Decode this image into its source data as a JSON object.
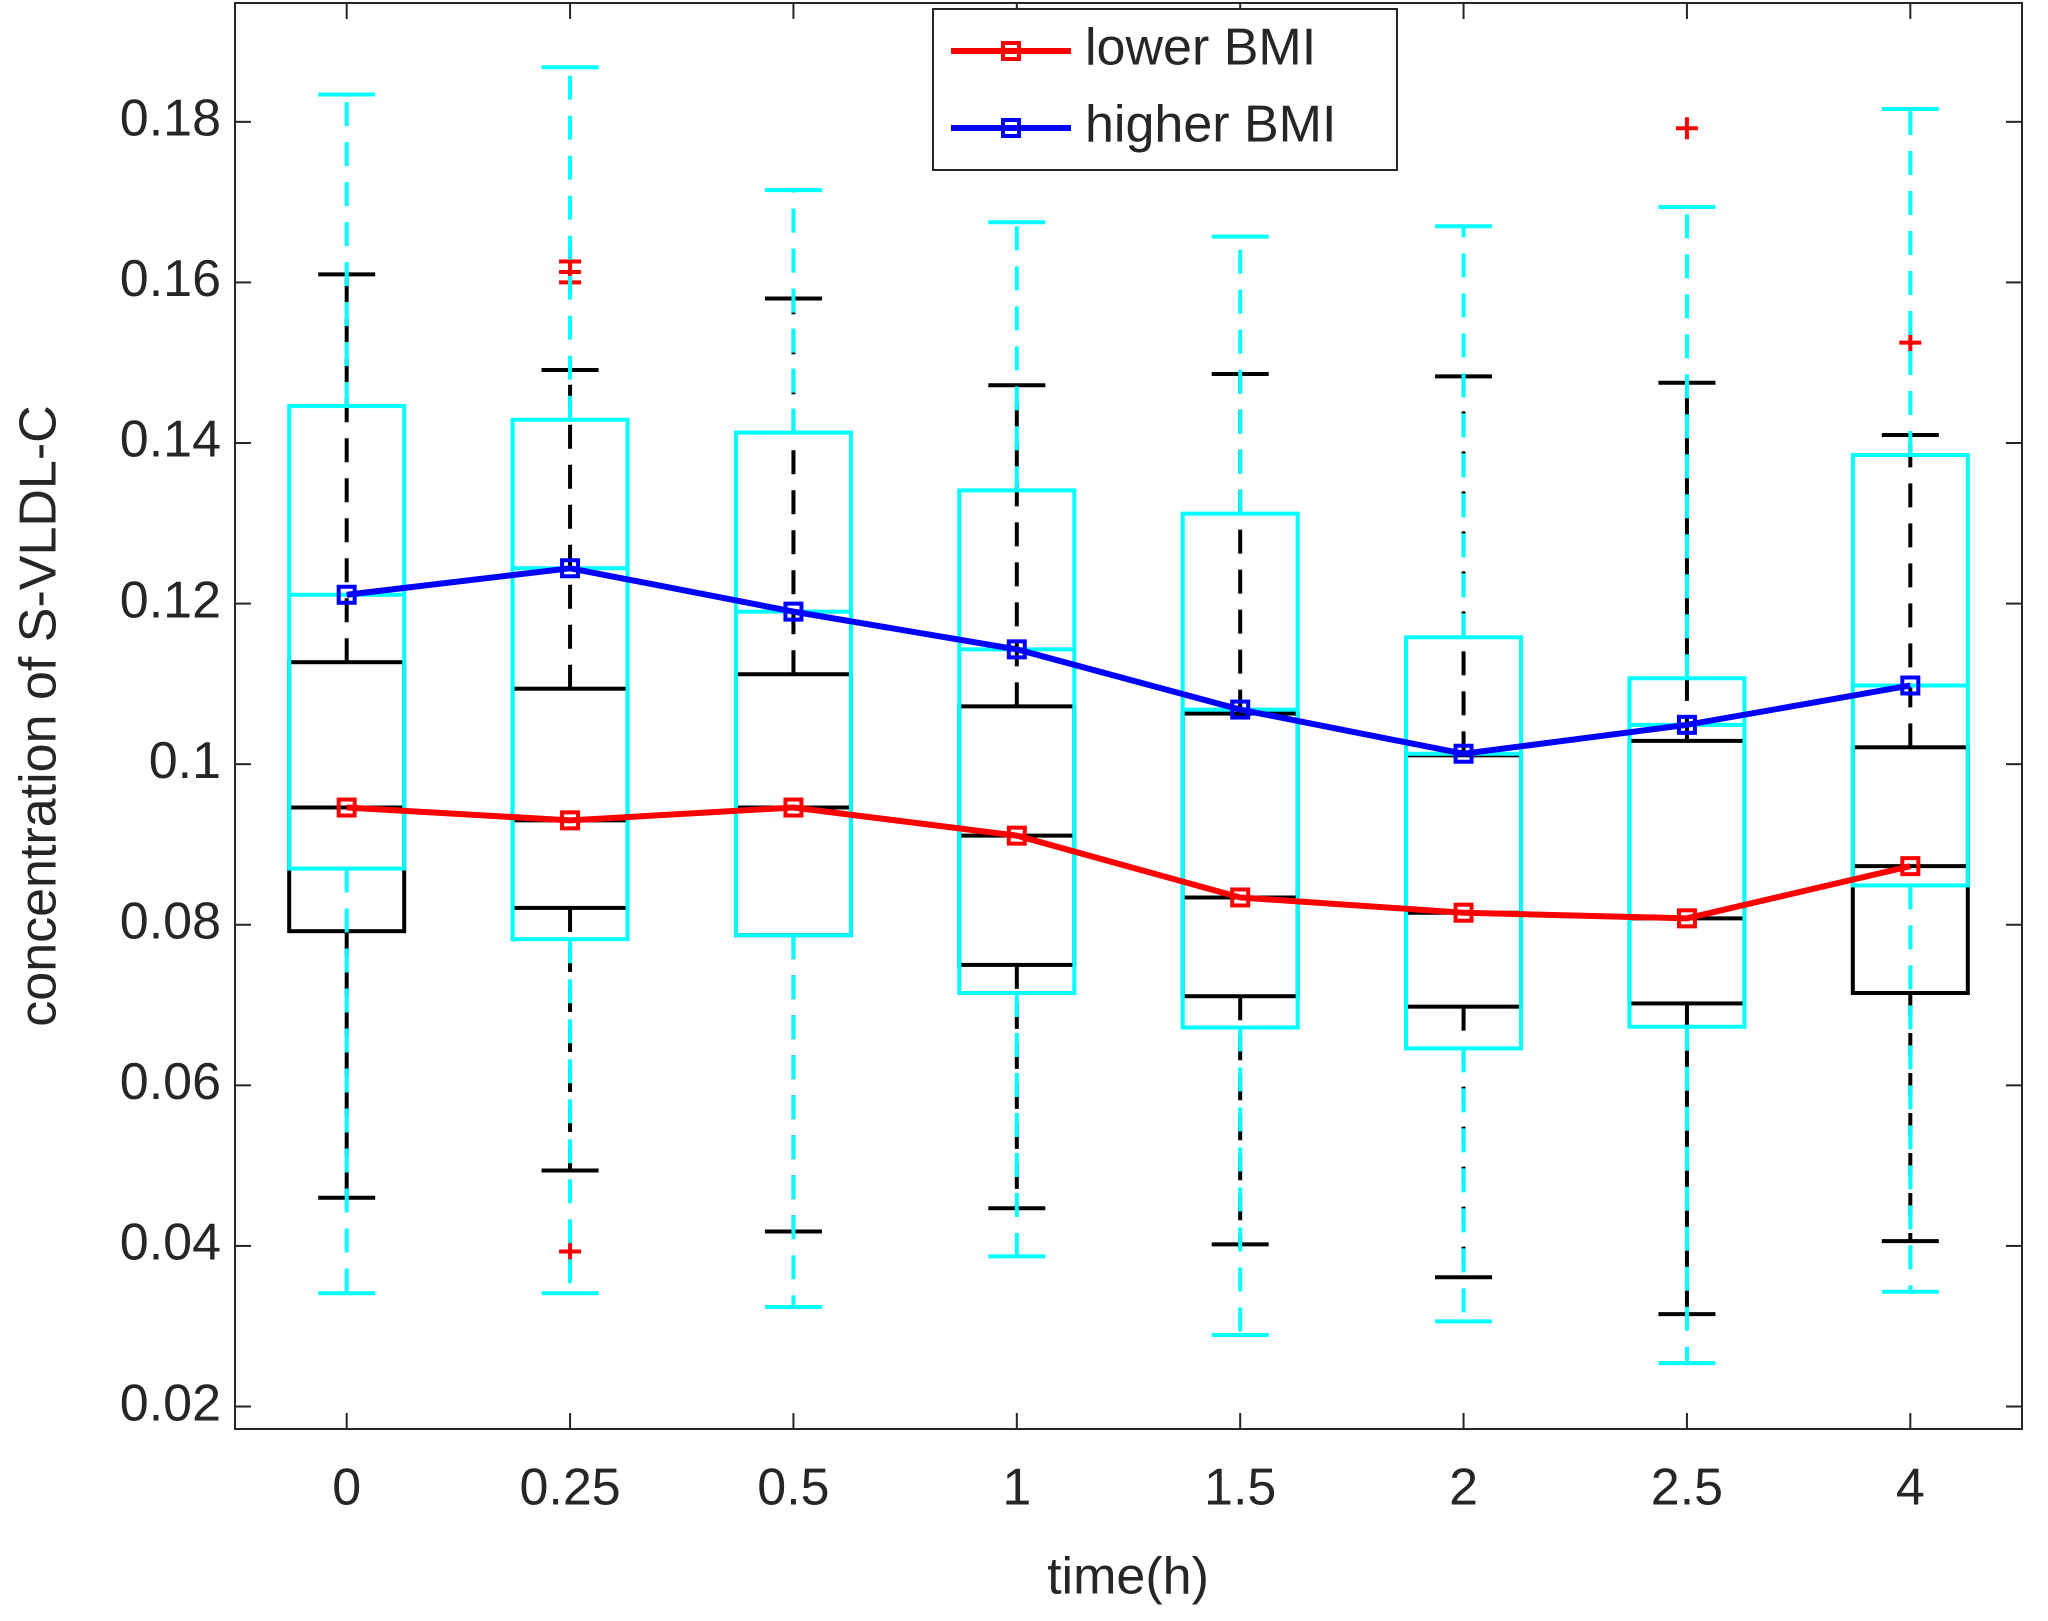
{
  "chart_data": {
    "type": "box",
    "xlabel": "time(h)",
    "ylabel": "concentration of S-VLDL-C",
    "categories": [
      "0",
      "0.25",
      "0.5",
      "1",
      "1.5",
      "2",
      "2.5",
      "4"
    ],
    "ylim": [
      0.0172,
      0.1948
    ],
    "yticks": [
      0.02,
      0.04,
      0.06,
      0.08,
      0.1,
      0.12,
      0.14,
      0.16,
      0.18
    ],
    "legend": "top",
    "series": [
      {
        "name": "lower BMI",
        "color": "#ff0000",
        "box_color": "#000000",
        "values": [
          0.0946,
          0.093,
          0.0946,
          0.0911,
          0.0834,
          0.0815,
          0.0808,
          0.0873
        ],
        "q1": [
          0.0792,
          0.0821,
          0.0787,
          0.075,
          0.0711,
          0.0698,
          0.0702,
          0.0715
        ],
        "q3": [
          0.1127,
          0.1094,
          0.1112,
          0.1072,
          0.1063,
          0.1011,
          0.1029,
          0.1021
        ],
        "whislo": [
          0.046,
          0.0494,
          0.0418,
          0.0447,
          0.0402,
          0.0361,
          0.0315,
          0.0406
        ],
        "whishi": [
          0.161,
          0.1491,
          0.158,
          0.1472,
          0.1486,
          0.1483,
          0.1475,
          0.141
        ],
        "outliers": [
          [],
          [
            0.1626,
            0.1613,
            0.16,
            0.0393
          ],
          [],
          [],
          [],
          [],
          [
            0.1792
          ],
          [
            0.1525
          ]
        ]
      },
      {
        "name": "higher BMI",
        "color": "#0000ff",
        "box_color": "#00ffff",
        "values": [
          0.1211,
          0.1244,
          0.119,
          0.1143,
          0.1068,
          0.1013,
          0.1049,
          0.1098
        ],
        "q1": [
          0.087,
          0.0782,
          0.0787,
          0.0715,
          0.0672,
          0.0646,
          0.0673,
          0.0849
        ],
        "q3": [
          0.1446,
          0.1429,
          0.1413,
          0.1341,
          0.1312,
          0.1158,
          0.1107,
          0.1385
        ],
        "whislo": [
          0.0341,
          0.0341,
          0.0324,
          0.0387,
          0.0289,
          0.0306,
          0.0254,
          0.0343
        ],
        "whishi": [
          0.1834,
          0.1868,
          0.1715,
          0.1675,
          0.1657,
          0.167,
          0.1694,
          0.1816
        ],
        "outliers": [
          [],
          [],
          [],
          [],
          [],
          [],
          [],
          []
        ]
      }
    ]
  }
}
